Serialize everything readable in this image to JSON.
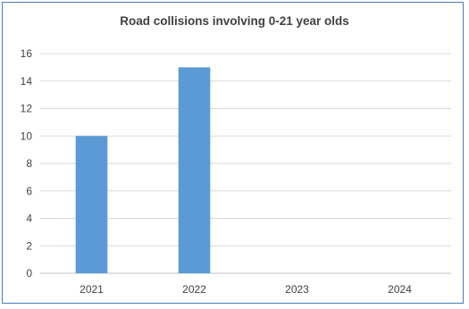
{
  "chart_data": {
    "type": "bar",
    "title": "Road collisions involving 0-21 year olds",
    "categories": [
      "2021",
      "2022",
      "2023",
      "2024"
    ],
    "values": [
      10,
      15,
      null,
      null
    ],
    "ylim": [
      0,
      16
    ],
    "yticks": [
      0,
      2,
      4,
      6,
      8,
      10,
      12,
      14,
      16
    ],
    "grid": true,
    "legend": "none",
    "colors": {
      "bar": "#5b9bd5",
      "grid": "#d9d9d9",
      "axis": "#bfbfbf",
      "frame": "#4a7ebb"
    }
  }
}
